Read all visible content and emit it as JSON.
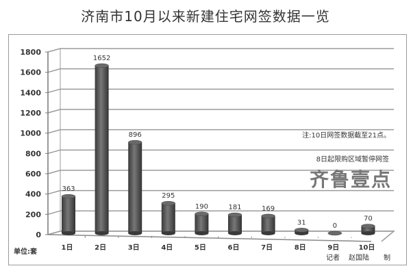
{
  "chart_data": {
    "type": "bar",
    "title": "济南市10月以来新建住宅网签数据一览",
    "categories": [
      "1日",
      "2日",
      "3日",
      "4日",
      "5日",
      "6日",
      "7日",
      "8日",
      "9日",
      "10日"
    ],
    "values": [
      363,
      1652,
      896,
      295,
      190,
      181,
      169,
      31,
      0,
      70
    ],
    "ylim": [
      0,
      1800
    ],
    "yticks": [
      0,
      200,
      400,
      600,
      800,
      1000,
      1200,
      1400,
      1600,
      1800
    ],
    "unit_label": "单位:套",
    "grid": true,
    "style": "3d-cylinder",
    "annotations": [
      "注:10日网签数据截至21点。",
      "8日起限购区域暂停网签"
    ],
    "credit": [
      "记者",
      "赵国陆",
      "制"
    ],
    "watermark": "齐鲁壹点",
    "colors": {
      "bar": "#555555",
      "grid": "#9a9a9a",
      "text": "#333333"
    }
  }
}
